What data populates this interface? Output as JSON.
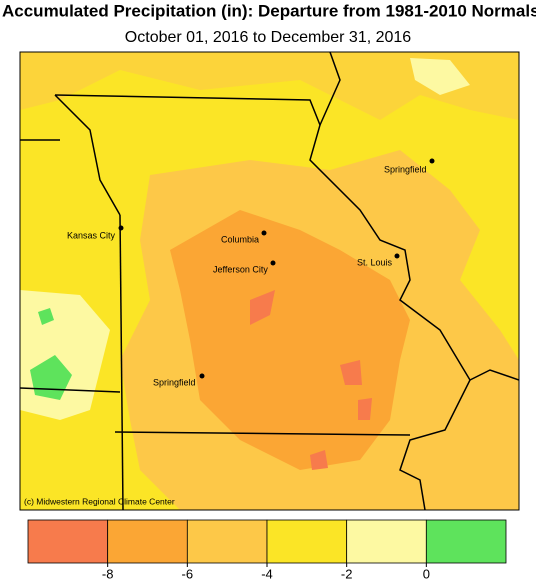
{
  "title": "Accumulated Precipitation (in): Departure from 1981-2010 Normals",
  "subtitle": "October 01, 2016 to December 31, 2016",
  "cities": [
    "Springfield",
    "Kansas City",
    "Columbia",
    "Jefferson City",
    "St. Louis",
    "Springfield"
  ],
  "credit": "(c) Midwestern Regional Climate Center",
  "legend": {
    "ticks": [
      -8,
      -6,
      -4,
      -2,
      0
    ],
    "colors": [
      "#f77b4c",
      "#fba634",
      "#fdc848",
      "#fbe526",
      "#fdf9a2",
      "#5ee35c"
    ]
  }
}
